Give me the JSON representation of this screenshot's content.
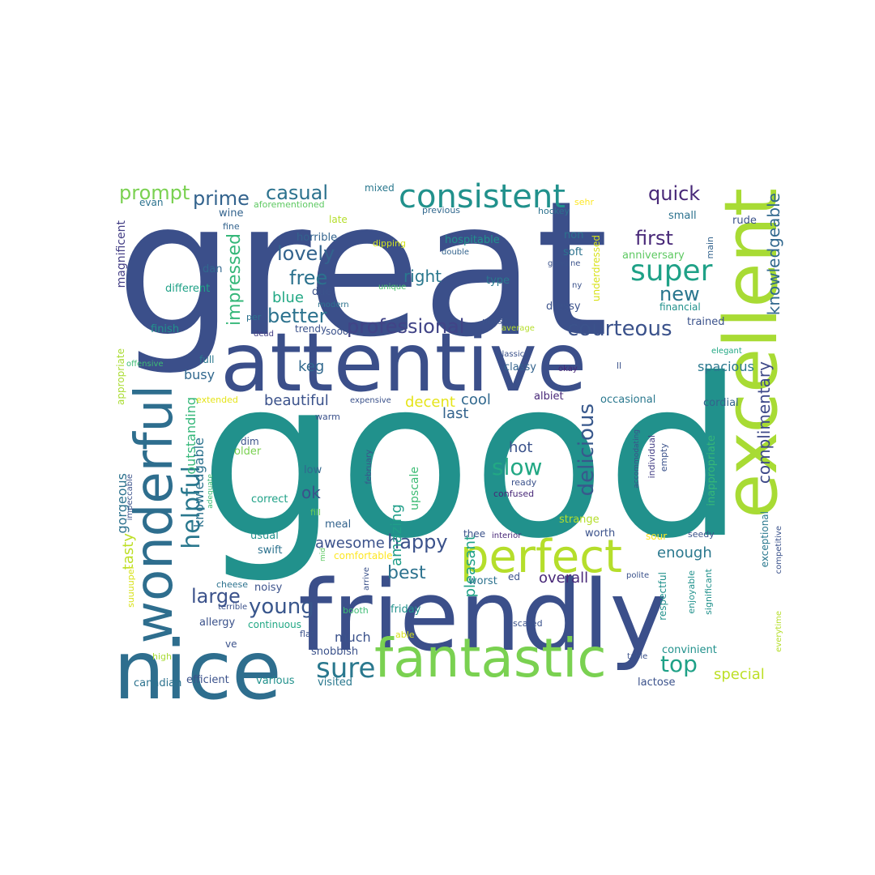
{
  "words": [
    {
      "text": "good",
      "color": "#21918c"
    },
    {
      "text": "great",
      "color": "#3b4f8a"
    },
    {
      "text": "attentive",
      "color": "#3b4f8a"
    },
    {
      "text": "friendly",
      "color": "#3b4f8a"
    },
    {
      "text": "excellent",
      "color": "#a8db34"
    },
    {
      "text": "nice",
      "color": "#2e6e8e"
    },
    {
      "text": "fantastic",
      "color": "#7ad151"
    },
    {
      "text": "wonderful",
      "color": "#2e6e8e"
    },
    {
      "text": "perfect",
      "color": "#b5de2b"
    },
    {
      "text": "consistent",
      "color": "#21918c"
    },
    {
      "text": "super",
      "color": "#1fa187"
    },
    {
      "text": "courteous",
      "color": "#3b528b"
    },
    {
      "text": "professional",
      "color": "#414487"
    },
    {
      "text": "delicious",
      "color": "#38588c"
    },
    {
      "text": "helpful",
      "color": "#2a788e"
    },
    {
      "text": "sure",
      "color": "#2a788e"
    },
    {
      "text": "top",
      "color": "#1fa187"
    },
    {
      "text": "happy",
      "color": "#3b528b"
    },
    {
      "text": "young",
      "color": "#39568c"
    },
    {
      "text": "slow",
      "color": "#22a884"
    },
    {
      "text": "free",
      "color": "#2c728e"
    },
    {
      "text": "lovely",
      "color": "#33638d"
    },
    {
      "text": "first",
      "color": "#482878"
    },
    {
      "text": "new",
      "color": "#2a768e"
    },
    {
      "text": "quick",
      "color": "#482878"
    },
    {
      "text": "prime",
      "color": "#33638d"
    },
    {
      "text": "casual",
      "color": "#2c728e"
    },
    {
      "text": "prompt",
      "color": "#7ad151"
    },
    {
      "text": "better",
      "color": "#2c728e"
    },
    {
      "text": "best",
      "color": "#2c728e"
    },
    {
      "text": "large",
      "color": "#3b528b"
    },
    {
      "text": "impressed",
      "color": "#35b779"
    },
    {
      "text": "knowledgeable",
      "color": "#31688e"
    },
    {
      "text": "complimentary",
      "color": "#3e4989"
    },
    {
      "text": "right",
      "color": "#2a788e"
    },
    {
      "text": "blue",
      "color": "#22a884"
    },
    {
      "text": "keg",
      "color": "#31688e"
    },
    {
      "text": "beautiful",
      "color": "#3b528b"
    },
    {
      "text": "decent",
      "color": "#e5e419"
    },
    {
      "text": "cool",
      "color": "#31688e"
    },
    {
      "text": "last",
      "color": "#33638d"
    },
    {
      "text": "hot",
      "color": "#3b528b"
    },
    {
      "text": "ok",
      "color": "#3b528b"
    },
    {
      "text": "amazing",
      "color": "#1f9e89"
    },
    {
      "text": "pleasant",
      "color": "#1fa187"
    },
    {
      "text": "awesome",
      "color": "#3b528b"
    },
    {
      "text": "overall",
      "color": "#482878"
    },
    {
      "text": "enough",
      "color": "#2a788e"
    },
    {
      "text": "special",
      "color": "#bddf26"
    },
    {
      "text": "outstanding",
      "color": "#35b779"
    },
    {
      "text": "knowledgable",
      "color": "#2c728e"
    },
    {
      "text": "gorgeous",
      "color": "#2c728e"
    },
    {
      "text": "tasty",
      "color": "#bddf26"
    },
    {
      "text": "busy",
      "color": "#31688e"
    },
    {
      "text": "much",
      "color": "#3b528b"
    },
    {
      "text": "spacious",
      "color": "#2a788e"
    },
    {
      "text": "upscale",
      "color": "#3dbc74"
    },
    {
      "text": "magnificent",
      "color": "#433e85"
    },
    {
      "text": "mixed",
      "color": "#2a788e"
    },
    {
      "text": "aforementioned",
      "color": "#5ec962"
    },
    {
      "text": "evan",
      "color": "#2c728e"
    },
    {
      "text": "wine",
      "color": "#33638d"
    },
    {
      "text": "late",
      "color": "#b5de2b"
    },
    {
      "text": "previous",
      "color": "#31688e"
    },
    {
      "text": "hockey",
      "color": "#2c728e"
    },
    {
      "text": "sehr",
      "color": "#fde725"
    },
    {
      "text": "small",
      "color": "#2c728e"
    },
    {
      "text": "rude",
      "color": "#3b528b"
    },
    {
      "text": "fine",
      "color": "#33638d"
    },
    {
      "text": "horrible",
      "color": "#33638d"
    },
    {
      "text": "dipping",
      "color": "#d0e11c"
    },
    {
      "text": "hospitable",
      "color": "#21918c"
    },
    {
      "text": "non",
      "color": "#2c728e"
    },
    {
      "text": "soft",
      "color": "#2c728e"
    },
    {
      "text": "underdressed",
      "color": "#d8e219"
    },
    {
      "text": "main",
      "color": "#33638d"
    },
    {
      "text": "anniversary",
      "color": "#5ec962"
    },
    {
      "text": "dan",
      "color": "#31688e"
    },
    {
      "text": "double",
      "color": "#33638d"
    },
    {
      "text": "genuine",
      "color": "#3b528b"
    },
    {
      "text": "different",
      "color": "#1fa187"
    },
    {
      "text": "unique",
      "color": "#4ac16d"
    },
    {
      "text": "type",
      "color": "#2a788e"
    },
    {
      "text": "ny",
      "color": "#3b528b"
    },
    {
      "text": "due",
      "color": "#3b528b"
    },
    {
      "text": "modern",
      "color": "#2c728e"
    },
    {
      "text": "financial",
      "color": "#21918c"
    },
    {
      "text": "dressy",
      "color": "#3b528b"
    },
    {
      "text": "per",
      "color": "#2c728e"
    },
    {
      "text": "trendy",
      "color": "#3b528b"
    },
    {
      "text": "finish",
      "color": "#21918c"
    },
    {
      "text": "dead",
      "color": "#433e85"
    },
    {
      "text": "sooo",
      "color": "#3b528b"
    },
    {
      "text": "possible",
      "color": "#3b528b"
    },
    {
      "text": "average",
      "color": "#b5de2b"
    },
    {
      "text": "trained",
      "color": "#3b528b"
    },
    {
      "text": "appropriate",
      "color": "#aadc32"
    },
    {
      "text": "offensive",
      "color": "#3dbc74"
    },
    {
      "text": "full",
      "color": "#2a788e"
    },
    {
      "text": "classic",
      "color": "#3b528b"
    },
    {
      "text": "classy",
      "color": "#33638d"
    },
    {
      "text": "okay",
      "color": "#482878"
    },
    {
      "text": "ll",
      "color": "#3b528b"
    },
    {
      "text": "elegant",
      "color": "#22a884"
    },
    {
      "text": "extended",
      "color": "#e5e419"
    },
    {
      "text": "expensive",
      "color": "#3b528b"
    },
    {
      "text": "albiet",
      "color": "#482878"
    },
    {
      "text": "occasional",
      "color": "#2a788e"
    },
    {
      "text": "cordial",
      "color": "#33638d"
    },
    {
      "text": "warm",
      "color": "#3b528b"
    },
    {
      "text": "dim",
      "color": "#3b528b"
    },
    {
      "text": "older",
      "color": "#7ad151"
    },
    {
      "text": "february",
      "color": "#3b528b"
    },
    {
      "text": "accommodating",
      "color": "#3b528b"
    },
    {
      "text": "individual",
      "color": "#433e85"
    },
    {
      "text": "empty",
      "color": "#3b528b"
    },
    {
      "text": "ready",
      "color": "#3b528b"
    },
    {
      "text": "confused",
      "color": "#482878"
    },
    {
      "text": "impeccable",
      "color": "#3b528b"
    },
    {
      "text": "adequate",
      "color": "#3dbc74"
    },
    {
      "text": "low",
      "color": "#31688e"
    },
    {
      "text": "correct",
      "color": "#1fa187"
    },
    {
      "text": "fill",
      "color": "#6ccd5a"
    },
    {
      "text": "meal",
      "color": "#33638d"
    },
    {
      "text": "strange",
      "color": "#b5de2b"
    },
    {
      "text": "inappropriate",
      "color": "#35b779"
    },
    {
      "text": "exceptional",
      "color": "#2a788e"
    },
    {
      "text": "competitive",
      "color": "#3b528b"
    },
    {
      "text": "usual",
      "color": "#21918c"
    },
    {
      "text": "swift",
      "color": "#2c728e"
    },
    {
      "text": "thee",
      "color": "#3b528b"
    },
    {
      "text": "interior",
      "color": "#482878"
    },
    {
      "text": "worth",
      "color": "#3b528b"
    },
    {
      "text": "sour",
      "color": "#fde725"
    },
    {
      "text": "seedy",
      "color": "#3b528b"
    },
    {
      "text": "mid",
      "color": "#5ec962"
    },
    {
      "text": "comfortable",
      "color": "#fde725"
    },
    {
      "text": "arrive",
      "color": "#3b528b"
    },
    {
      "text": "ed",
      "color": "#3b528b"
    },
    {
      "text": "polite",
      "color": "#3b528b"
    },
    {
      "text": "respectful",
      "color": "#21918c"
    },
    {
      "text": "enjoyable",
      "color": "#21918c"
    },
    {
      "text": "significant",
      "color": "#21918c"
    },
    {
      "text": "suuuuper",
      "color": "#d8e219"
    },
    {
      "text": "cheese",
      "color": "#2c728e"
    },
    {
      "text": "noisy",
      "color": "#3b528b"
    },
    {
      "text": "worst",
      "color": "#2c728e"
    },
    {
      "text": "terrible",
      "color": "#3b528b"
    },
    {
      "text": "booth",
      "color": "#3dbc74"
    },
    {
      "text": "friday",
      "color": "#21918c"
    },
    {
      "text": "allergy",
      "color": "#3b528b"
    },
    {
      "text": "continuous",
      "color": "#22a884"
    },
    {
      "text": "scared",
      "color": "#3b528b"
    },
    {
      "text": "everytime",
      "color": "#b5de2b"
    },
    {
      "text": "flat",
      "color": "#3b528b"
    },
    {
      "text": "able",
      "color": "#d8e219"
    },
    {
      "text": "ve",
      "color": "#3b528b"
    },
    {
      "text": "snobbish",
      "color": "#3b528b"
    },
    {
      "text": "table",
      "color": "#3b528b"
    },
    {
      "text": "convinient",
      "color": "#21918c"
    },
    {
      "text": "high",
      "color": "#a8db34"
    },
    {
      "text": "canadian",
      "color": "#2c728e"
    },
    {
      "text": "efficient",
      "color": "#3b528b"
    },
    {
      "text": "various",
      "color": "#21918c"
    },
    {
      "text": "visited",
      "color": "#2a788e"
    },
    {
      "text": "lactose",
      "color": "#3b528b"
    }
  ]
}
